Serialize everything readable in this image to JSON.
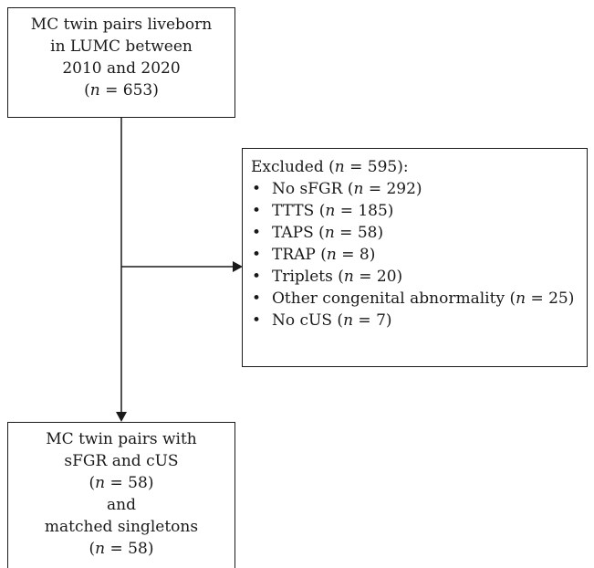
{
  "boxes": {
    "top": {
      "lines": [
        "MC twin pairs liveborn",
        "in LUMC between",
        "2010 and 2020"
      ],
      "n_label": "n",
      "n_value": " = 653"
    },
    "excluded": {
      "heading_prefix": "Excluded (",
      "heading_n_label": "n",
      "heading_n_value": " = 595",
      "heading_suffix": "):",
      "items": [
        {
          "text": "No sFGR",
          "n_value": " = 292"
        },
        {
          "text": "TTTS",
          "n_value": " = 185"
        },
        {
          "text": "TAPS",
          "n_value": " = 58"
        },
        {
          "text": "TRAP",
          "n_value": " = 8"
        },
        {
          "text": "Triplets",
          "n_value": " = 20"
        },
        {
          "text": "Other congenital abnormality",
          "n_value": " = 25"
        },
        {
          "text": "No cUS",
          "n_value": " = 7"
        }
      ],
      "bullet": "•",
      "n_label": "n"
    },
    "bottom": {
      "line1": "MC twin pairs with",
      "line2": "sFGR and cUS",
      "n1_value": " = 58",
      "line_and": "and",
      "line3": "matched singletons",
      "n2_value": " = 58",
      "n_label": "n"
    }
  }
}
